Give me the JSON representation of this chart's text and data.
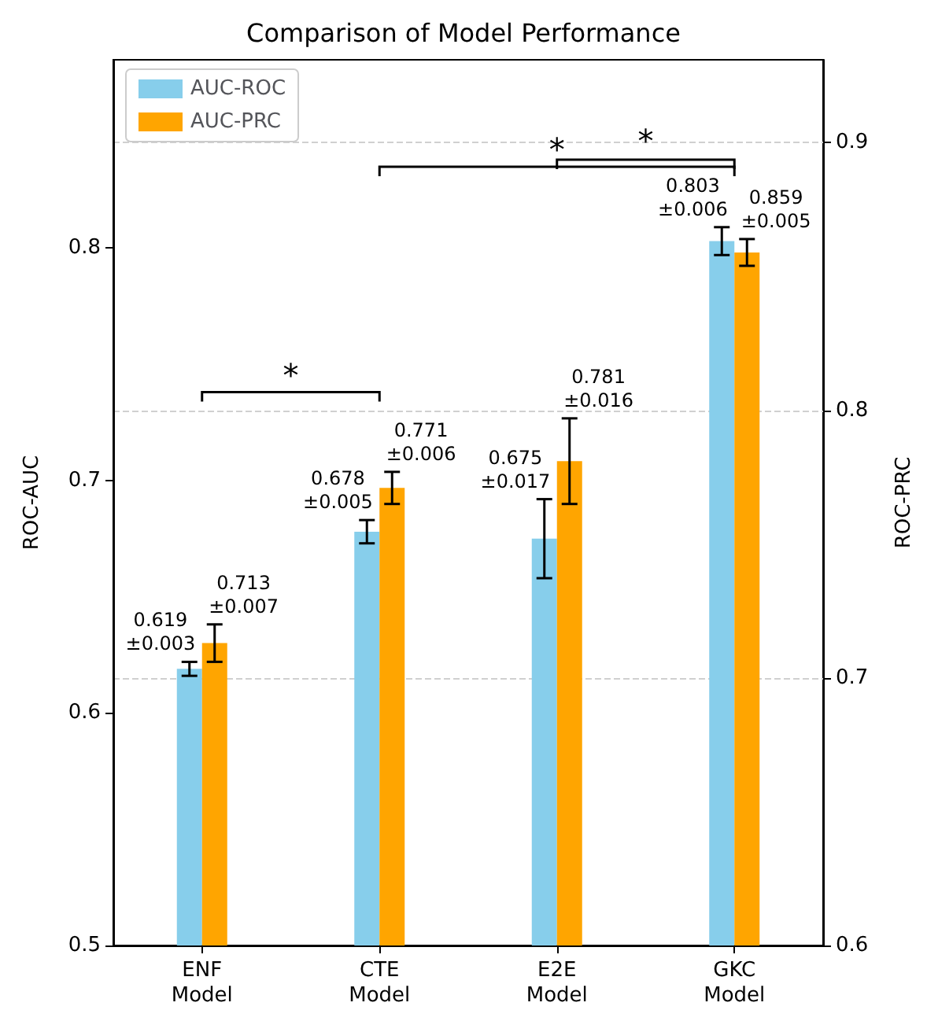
{
  "chart_data": {
    "type": "bar",
    "title": "Comparison of Model Performance",
    "categories": [
      "ENF\nModel",
      "CTE\nModel",
      "E2E\nModel",
      "GKC\nModel"
    ],
    "ylabel": "ROC-AUC",
    "y2label": "ROC-PRC",
    "series": [
      {
        "name": "AUC-ROC",
        "color": "#87ceeb",
        "values": [
          0.619,
          0.678,
          0.675,
          0.803
        ],
        "errors": [
          0.003,
          0.005,
          0.017,
          0.006
        ],
        "value_labels": [
          "0.619\n±0.003",
          "0.678\n±0.005",
          "0.675\n±0.017",
          "0.803\n±0.006"
        ]
      },
      {
        "name": "AUC-PRC",
        "color": "#ffa500",
        "axis": "y2",
        "values": [
          0.713,
          0.771,
          0.781,
          0.859
        ],
        "errors": [
          0.007,
          0.006,
          0.016,
          0.005
        ],
        "value_labels": [
          "0.713\n±0.007",
          "0.771\n±0.006",
          "0.781\n±0.016",
          "0.859\n±0.005"
        ]
      }
    ],
    "ylim": [
      0.5,
      0.881
    ],
    "yticks": [
      0.5,
      0.6,
      0.7,
      0.8
    ],
    "y2lim": [
      0.6,
      0.931
    ],
    "y2ticks": [
      0.6,
      0.7,
      0.8,
      0.9
    ],
    "annotations": [
      "*",
      "*",
      "*"
    ],
    "grid": "y",
    "legend": "top left"
  }
}
